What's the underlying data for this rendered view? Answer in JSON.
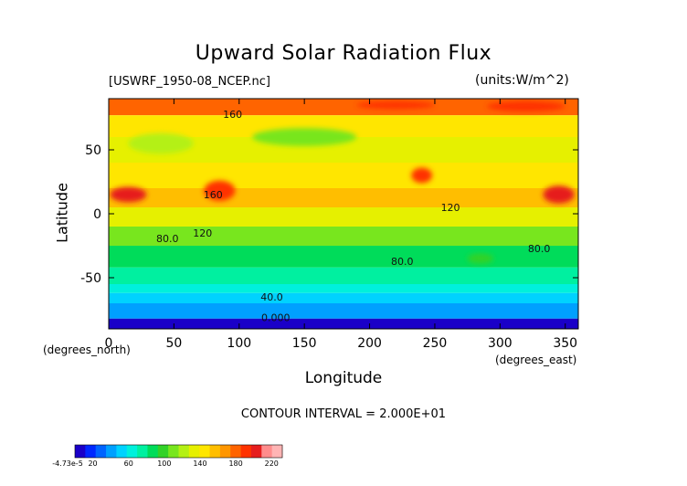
{
  "chart_data": {
    "type": "heatmap",
    "title": "Upward Solar Radiation Flux",
    "file_label": "[USWRF_1950-08_NCEP.nc]",
    "units": "(units:W/m^2)",
    "xlabel": "Longitude",
    "ylabel": "Latitude",
    "x_unit_left": "(degrees_north)",
    "x_unit_right": "(degrees_east)",
    "xlim": [
      0,
      360
    ],
    "ylim": [
      -90,
      90
    ],
    "x_ticks": [
      "0",
      "50",
      "100",
      "150",
      "200",
      "250",
      "300",
      "350"
    ],
    "y_ticks": [
      "50",
      "0",
      "-50"
    ],
    "contour_interval_text": "CONTOUR INTERVAL = 2.000E+01",
    "contour_labels": [
      {
        "text": "160",
        "lon": 95,
        "lat": 75
      },
      {
        "text": "160",
        "lon": 80,
        "lat": 12
      },
      {
        "text": "120",
        "lon": 72,
        "lat": -18
      },
      {
        "text": "120",
        "lon": 262,
        "lat": 2
      },
      {
        "text": "80.0",
        "lon": 45,
        "lat": -22
      },
      {
        "text": "80.0",
        "lon": 225,
        "lat": -40
      },
      {
        "text": "80.0",
        "lon": 330,
        "lat": -30
      },
      {
        "text": "40.0",
        "lon": 125,
        "lat": -68
      },
      {
        "text": "0.000",
        "lon": 128,
        "lat": -84
      }
    ],
    "colorbar": {
      "labels": [
        "-4.73e-5",
        "20",
        "60",
        "100",
        "140",
        "180",
        "220"
      ],
      "colors": [
        "#1a00c8",
        "#0028ff",
        "#0064ff",
        "#00a0ff",
        "#00d2ff",
        "#00f0dc",
        "#00f0a0",
        "#00dc5a",
        "#32d228",
        "#78e61e",
        "#b4f014",
        "#e6f000",
        "#ffe600",
        "#ffbe00",
        "#ff9600",
        "#ff6400",
        "#ff3200",
        "#e61e1e",
        "#ff8c8c",
        "#ffb4b4"
      ]
    },
    "rows": [
      {
        "lat_top": 90,
        "lat_bot": 77,
        "value": 170
      },
      {
        "lat_top": 77,
        "lat_bot": 60,
        "value": 140
      },
      {
        "lat_top": 60,
        "lat_bot": 40,
        "value": 125
      },
      {
        "lat_top": 40,
        "lat_bot": 20,
        "value": 135
      },
      {
        "lat_top": 20,
        "lat_bot": 5,
        "value": 150
      },
      {
        "lat_top": 5,
        "lat_bot": -10,
        "value": 120
      },
      {
        "lat_top": -10,
        "lat_bot": -25,
        "value": 100
      },
      {
        "lat_top": -25,
        "lat_bot": -42,
        "value": 80
      },
      {
        "lat_top": -42,
        "lat_bot": -55,
        "value": 60
      },
      {
        "lat_top": -55,
        "lat_bot": -62,
        "value": 50
      },
      {
        "lat_top": -62,
        "lat_bot": -70,
        "value": 40
      },
      {
        "lat_top": -70,
        "lat_bot": -82,
        "value": 25
      },
      {
        "lat_top": -82,
        "lat_bot": -90,
        "value": 0
      }
    ],
    "hotspots": [
      {
        "lon": 15,
        "lat": 15,
        "rlon": 14,
        "rlat": 6,
        "value": 195
      },
      {
        "lon": 85,
        "lat": 18,
        "rlon": 12,
        "rlat": 8,
        "value": 190
      },
      {
        "lon": 240,
        "lat": 30,
        "rlon": 8,
        "rlat": 6,
        "value": 185
      },
      {
        "lon": 345,
        "lat": 15,
        "rlon": 12,
        "rlat": 7,
        "value": 195
      },
      {
        "lon": 320,
        "lat": 84,
        "rlon": 30,
        "rlat": 4,
        "value": 190
      },
      {
        "lon": 220,
        "lat": 85,
        "rlon": 30,
        "rlat": 3,
        "value": 180
      },
      {
        "lon": 150,
        "lat": 60,
        "rlon": 40,
        "rlat": 7,
        "value": 100
      },
      {
        "lon": 285,
        "lat": -35,
        "rlon": 10,
        "rlat": 4,
        "value": 95
      },
      {
        "lon": 40,
        "lat": 55,
        "rlon": 25,
        "rlat": 8,
        "value": 110
      }
    ]
  }
}
